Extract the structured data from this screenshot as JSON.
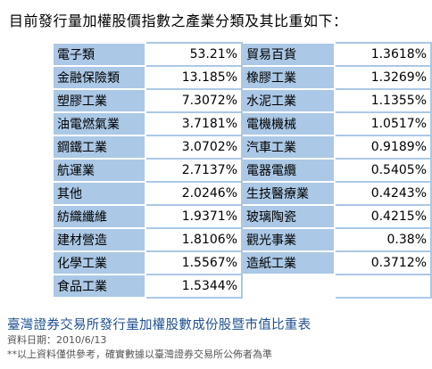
{
  "heading": "目前發行量加權股價指數之產業分類及其比重如下：",
  "rows": [
    [
      "電子類",
      "53.21%",
      "貿易百貨",
      "1.3618%"
    ],
    [
      "金融保險類",
      "13.185%",
      "橡膠工業",
      "1.3269%"
    ],
    [
      "塑膠工業",
      "7.3072%",
      "水泥工業",
      "1.1355%"
    ],
    [
      "油電燃氣業",
      "3.7181%",
      "電機機械",
      "1.0517%"
    ],
    [
      "鋼鐵工業",
      "3.0702%",
      "汽車工業",
      "0.9189%"
    ],
    [
      "航運業",
      "2.7137%",
      "電器電纜",
      "0.5405%"
    ],
    [
      "其他",
      "2.0246%",
      "生技醫療業",
      "0.4243%"
    ],
    [
      "紡織纖維",
      "1.9371%",
      "玻璃陶瓷",
      "0.4215%"
    ],
    [
      "建材營造",
      "1.8106%",
      "觀光事業",
      "0.38%"
    ],
    [
      "化學工業",
      "1.5567%",
      "造紙工業",
      "0.3712%"
    ],
    [
      "食品工業",
      "1.5344%",
      "",
      ""
    ]
  ],
  "caption": "臺灣證券交易所發行量加權股數成份股暨市值比重表",
  "date_line": "資料日期：2010/6/13",
  "note": "**以上資料僅供參考，確實數據以臺灣證券交易所公佈者為準"
}
